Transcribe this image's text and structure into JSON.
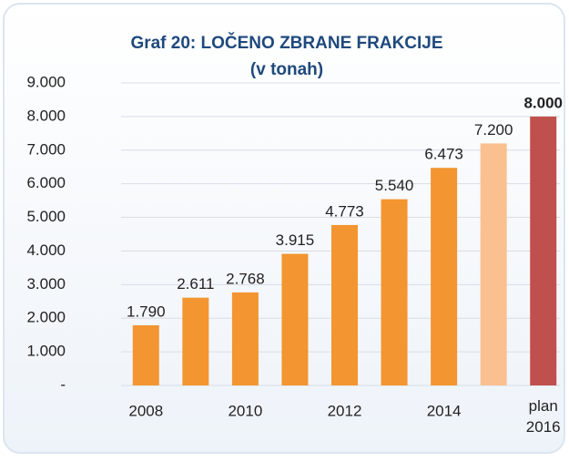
{
  "chart_data": {
    "type": "bar",
    "title": "Graf 20: LOČENO ZBRANE FRAKCIJE",
    "subtitle": "(v tonah)",
    "categories": [
      "2008",
      null,
      "2010",
      null,
      "2012",
      null,
      "2014",
      null,
      "plan 2016"
    ],
    "values": [
      1790,
      2611,
      2768,
      3915,
      4773,
      5540,
      6473,
      7200,
      8000
    ],
    "value_labels": [
      "1.790",
      "2.611",
      "2.768",
      "3.915",
      "4.773",
      "5.540",
      "6.473",
      "7.200",
      "8.000"
    ],
    "colors": [
      "#f39530",
      "#f39530",
      "#f39530",
      "#f39530",
      "#f39530",
      "#f39530",
      "#f39530",
      "#fac090",
      "#c0504d"
    ],
    "bold_last_label": true,
    "ylim": [
      0,
      9000
    ],
    "yticks": [
      {
        "value": 0,
        "label": "-"
      },
      {
        "value": 1000,
        "label": "1.000"
      },
      {
        "value": 2000,
        "label": "2.000"
      },
      {
        "value": 3000,
        "label": "3.000"
      },
      {
        "value": 4000,
        "label": "4.000"
      },
      {
        "value": 5000,
        "label": "5.000"
      },
      {
        "value": 6000,
        "label": "6.000"
      },
      {
        "value": 7000,
        "label": "7.000"
      },
      {
        "value": 8000,
        "label": "8.000"
      },
      {
        "value": 9000,
        "label": "9.000"
      }
    ],
    "grid": true
  }
}
